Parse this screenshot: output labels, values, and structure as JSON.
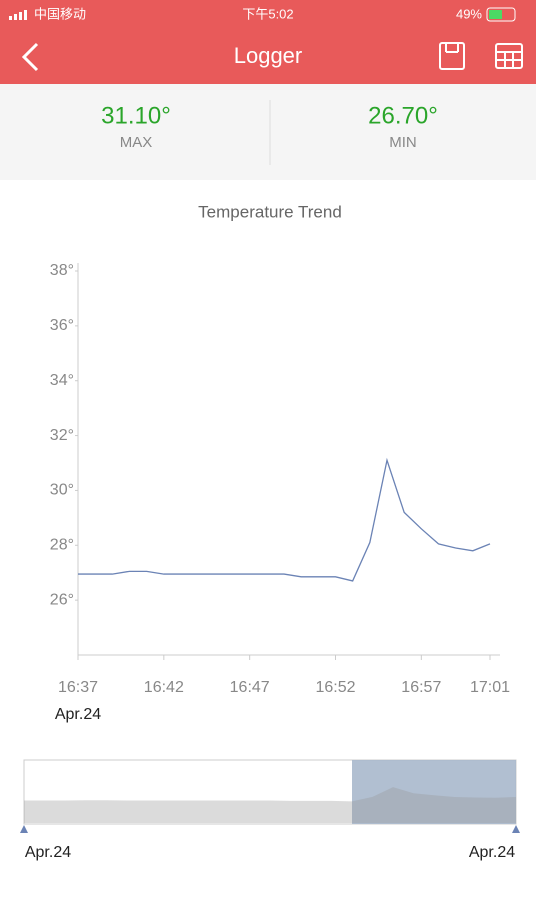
{
  "status_bar": {
    "carrier": "中国移动",
    "time": "下午5:02",
    "battery": "49%"
  },
  "nav": {
    "title": "Logger"
  },
  "stats": {
    "max": {
      "value": "31.10°",
      "label": "MAX"
    },
    "min": {
      "value": "26.70°",
      "label": "MIN"
    }
  },
  "chart_data": {
    "type": "line",
    "title": "Temperature Trend",
    "categories": [
      "16:37",
      null,
      null,
      null,
      null,
      "16:42",
      null,
      null,
      null,
      null,
      "16:47",
      null,
      null,
      null,
      null,
      "16:52",
      null,
      null,
      null,
      null,
      "16:57",
      null,
      null,
      null,
      "17:01"
    ],
    "series": [
      {
        "name": "Temperature",
        "color": "#6b83b5",
        "values": [
          26.95,
          26.95,
          26.95,
          27.05,
          27.05,
          26.95,
          26.95,
          26.95,
          26.95,
          26.95,
          26.95,
          26.95,
          26.95,
          26.85,
          26.85,
          26.85,
          26.7,
          28.1,
          31.1,
          29.2,
          28.6,
          28.05,
          27.9,
          27.8,
          28.05
        ]
      }
    ],
    "ylim": [
      24,
      38
    ],
    "yticks": [
      {
        "value": 26,
        "label": "26°"
      },
      {
        "value": 28,
        "label": "28°"
      },
      {
        "value": 30,
        "label": "30°"
      },
      {
        "value": 32,
        "label": "32°"
      },
      {
        "value": 34,
        "label": "34°"
      },
      {
        "value": 36,
        "label": "36°"
      },
      {
        "value": 38,
        "label": "38°"
      }
    ],
    "date_label": "Apr.24"
  },
  "slider": {
    "start_label": "Apr.24",
    "end_label": "Apr.24"
  }
}
